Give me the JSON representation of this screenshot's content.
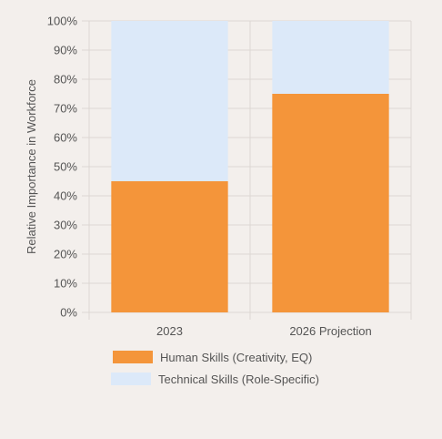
{
  "chart_data": {
    "type": "bar",
    "stacked": true,
    "categories": [
      "2023",
      "2026 Projection"
    ],
    "series": [
      {
        "name": "Human Skills (Creativity, EQ)",
        "values": [
          45,
          75
        ],
        "color": "#f4953a"
      },
      {
        "name": "Technical Skills (Role-Specific)",
        "values": [
          55,
          25
        ],
        "color": "#dce9f9"
      }
    ],
    "title": "",
    "xlabel": "",
    "ylabel": "Relative Importance in Workforce",
    "ylim": [
      0,
      100
    ],
    "yticks": [
      0,
      10,
      20,
      30,
      40,
      50,
      60,
      70,
      80,
      90,
      100
    ],
    "ytick_labels": [
      "0%",
      "10%",
      "20%",
      "30%",
      "40%",
      "50%",
      "60%",
      "70%",
      "80%",
      "90%",
      "100%"
    ],
    "grid": true,
    "legend_position": "bottom"
  },
  "colors": {
    "background": "#f3efec",
    "grid": "#dcd7d3",
    "text": "#555555"
  }
}
